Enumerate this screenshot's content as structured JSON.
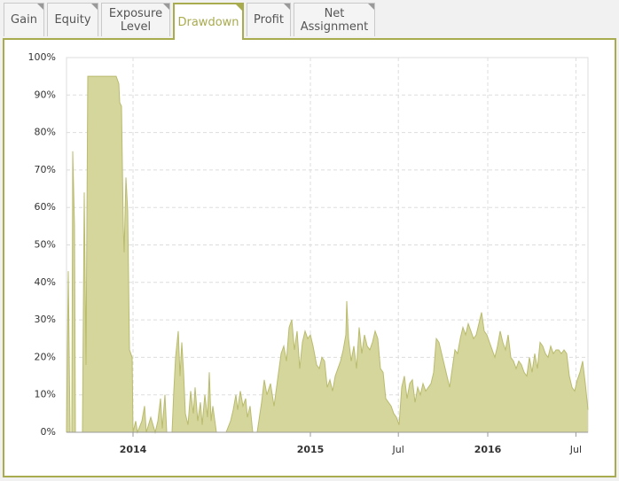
{
  "tabs": [
    "Gain",
    "Equity",
    "Exposure Level",
    "Drawdown",
    "Profit",
    "Net Assignment"
  ],
  "active_tab": 3,
  "chart_data": {
    "type": "area",
    "color": "#d5d69c",
    "line_color": "#b9bb6e",
    "grid": true,
    "x": [
      2013.625,
      2013.635,
      2013.645,
      2013.655,
      2013.66,
      2013.67,
      2013.675,
      2013.715,
      2013.725,
      2013.735,
      2013.745,
      2013.905,
      2013.92,
      2013.925,
      2013.935,
      2013.945,
      2013.95,
      2013.96,
      2013.97,
      2013.98,
      2013.995,
      2014.0,
      2014.015,
      2014.025,
      2014.05,
      2014.065,
      2014.075,
      2014.1,
      2014.125,
      2014.14,
      2014.155,
      2014.165,
      2014.18,
      2014.19,
      2014.22,
      2014.23,
      2014.24,
      2014.255,
      2014.265,
      2014.275,
      2014.285,
      2014.295,
      2014.31,
      2014.325,
      2014.34,
      2014.35,
      2014.365,
      2014.38,
      2014.39,
      2014.405,
      2014.42,
      2014.43,
      2014.44,
      2014.45,
      2014.47,
      2014.525,
      2014.55,
      2014.565,
      2014.58,
      2014.59,
      2014.605,
      2014.62,
      2014.635,
      2014.645,
      2014.66,
      2014.675,
      2014.7,
      2014.725,
      2014.74,
      2014.755,
      2014.775,
      2014.795,
      2014.815,
      2014.835,
      2014.85,
      2014.865,
      2014.88,
      2014.895,
      2014.91,
      2014.925,
      2014.94,
      2014.955,
      2014.97,
      2014.985,
      2015.0,
      2015.015,
      2015.035,
      2015.05,
      2015.065,
      2015.08,
      2015.095,
      2015.11,
      2015.125,
      2015.14,
      2015.155,
      2015.17,
      2015.185,
      2015.2,
      2015.205,
      2015.215,
      2015.23,
      2015.245,
      2015.26,
      2015.275,
      2015.29,
      2015.305,
      2015.32,
      2015.335,
      2015.35,
      2015.365,
      2015.38,
      2015.395,
      2015.41,
      2015.425,
      2015.44,
      2015.455,
      2015.47,
      2015.485,
      2015.5,
      2015.515,
      2015.53,
      2015.545,
      2015.56,
      2015.575,
      2015.59,
      2015.605,
      2015.62,
      2015.635,
      2015.65,
      2015.665,
      2015.68,
      2015.695,
      2015.71,
      2015.725,
      2015.74,
      2015.755,
      2015.77,
      2015.785,
      2015.8,
      2015.815,
      2015.83,
      2015.845,
      2015.86,
      2015.875,
      2015.89,
      2015.905,
      2015.92,
      2015.935,
      2015.95,
      2015.965,
      2015.98,
      2015.995,
      2016.01,
      2016.025,
      2016.04,
      2016.055,
      2016.07,
      2016.085,
      2016.1,
      2016.115,
      2016.13,
      2016.145,
      2016.16,
      2016.175,
      2016.19,
      2016.205,
      2016.22,
      2016.235,
      2016.25,
      2016.265,
      2016.28,
      2016.295,
      2016.31,
      2016.325,
      2016.34,
      2016.355,
      2016.37,
      2016.385,
      2016.4,
      2016.415,
      2016.43,
      2016.445,
      2016.46,
      2016.475,
      2016.49,
      2016.505,
      2016.52,
      2016.535,
      2016.55,
      2016.565
    ],
    "values": [
      0,
      43,
      0,
      0,
      75,
      55,
      0,
      0,
      64,
      18,
      95,
      95,
      93,
      88,
      87,
      55,
      48,
      68,
      59,
      22,
      20,
      0,
      3,
      0,
      3,
      7,
      0,
      4,
      0,
      3,
      9,
      1,
      10,
      0,
      0,
      11,
      20,
      27,
      15,
      24,
      16,
      5,
      2,
      11,
      5,
      12,
      3,
      8,
      2,
      10,
      4,
      16,
      3,
      7,
      0,
      0,
      3,
      6,
      10,
      6,
      11,
      7,
      9,
      4,
      7,
      0,
      0,
      8,
      14,
      10,
      13,
      7,
      14,
      21,
      23,
      19,
      28,
      30,
      22,
      27,
      17,
      24,
      27,
      25,
      26,
      23,
      18,
      17,
      20,
      19,
      12,
      14,
      11,
      15,
      17,
      19,
      22,
      26,
      35,
      25,
      19,
      23,
      17,
      28,
      21,
      26,
      23,
      22,
      24,
      27,
      25,
      17,
      16,
      9,
      8,
      7,
      5,
      4,
      2,
      12,
      15,
      9,
      13,
      14,
      8,
      12,
      10,
      13,
      11,
      12,
      13,
      16,
      25,
      24,
      21,
      18,
      15,
      12,
      17,
      22,
      21,
      25,
      28,
      26,
      29,
      27,
      25,
      26,
      29,
      32,
      27,
      26,
      24,
      22,
      20,
      23,
      27,
      24,
      22,
      26,
      20,
      19,
      17,
      19,
      18,
      16,
      15,
      20,
      16,
      21,
      17,
      24,
      23,
      21,
      20,
      23,
      21,
      22,
      22,
      21,
      22,
      21,
      15,
      12,
      11,
      14,
      16,
      19,
      13,
      6
    ],
    "xlim": [
      2013.625,
      2016.565
    ],
    "xticks": [
      2014,
      2015,
      {
        "value": 2015.496,
        "label": "Jul"
      },
      2016,
      {
        "value": 2016.497,
        "label": "Jul"
      }
    ],
    "ylim": [
      0,
      100
    ],
    "yticks": [
      {
        "value": 0,
        "label": "0%"
      },
      {
        "value": 10,
        "label": "10%"
      },
      {
        "value": 20,
        "label": "20%"
      },
      {
        "value": 30,
        "label": "30%"
      },
      {
        "value": 40,
        "label": "40%"
      },
      {
        "value": 50,
        "label": "50%"
      },
      {
        "value": 60,
        "label": "60%"
      },
      {
        "value": 70,
        "label": "70%"
      },
      {
        "value": 80,
        "label": "80%"
      },
      {
        "value": 90,
        "label": "90%"
      },
      {
        "value": 100,
        "label": "100%"
      }
    ]
  }
}
